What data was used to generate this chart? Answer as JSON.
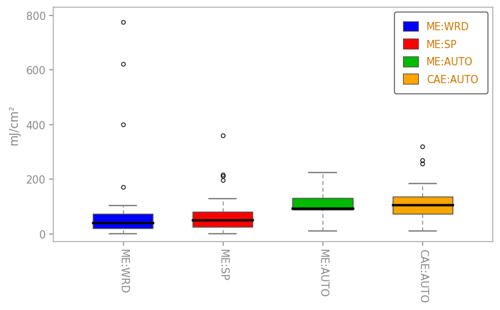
{
  "groups": [
    "ME:WRD",
    "ME:SP",
    "ME:AUTO",
    "CAE:AUTO"
  ],
  "colors": [
    "#0000FF",
    "#FF0000",
    "#00BB00",
    "#FFA500"
  ],
  "boxes": [
    {
      "q1": 20,
      "median": 38,
      "q3": 72,
      "whisker_low": 0,
      "whisker_high": 103,
      "outliers": [
        170,
        400,
        622,
        775
      ]
    },
    {
      "q1": 25,
      "median": 50,
      "q3": 80,
      "whisker_low": 0,
      "whisker_high": 128,
      "outliers": [
        195,
        210,
        215,
        360
      ]
    },
    {
      "q1": 88,
      "median": 93,
      "q3": 130,
      "whisker_low": 10,
      "whisker_high": 222,
      "outliers": []
    },
    {
      "q1": 73,
      "median": 105,
      "q3": 135,
      "whisker_low": 10,
      "whisker_high": 183,
      "outliers": [
        255,
        268,
        320
      ]
    }
  ],
  "ylabel": "mJ/cm²",
  "ylim": [
    -30,
    830
  ],
  "yticks": [
    0,
    200,
    400,
    600,
    800
  ],
  "legend_labels": [
    "ME:WRD",
    "ME:SP",
    "ME:AUTO",
    "CAE:AUTO"
  ],
  "legend_colors": [
    "#0000FF",
    "#FF0000",
    "#00BB00",
    "#FFA500"
  ],
  "box_width": 0.6,
  "whisker_color": "#888888",
  "median_color": "#000000",
  "outlier_color": "#000000",
  "background_color": "#FFFFFF",
  "plot_bg_color": "#FFFFFF",
  "spine_color": "#AAAAAA",
  "tick_color": "#888888",
  "label_color": "#888888"
}
